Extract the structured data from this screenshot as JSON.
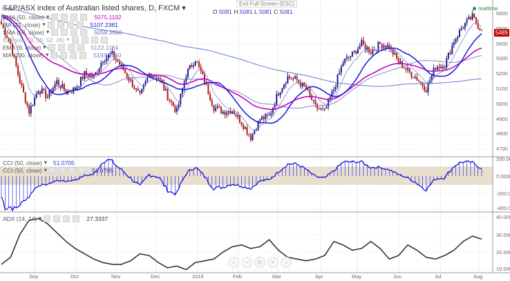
{
  "header": {
    "title": "S&P/ASX index of Australian listed shares, D, FXCM",
    "ohlc": {
      "o": "5081",
      "h": "5081",
      "l": "5081",
      "c": "5081"
    },
    "tooltip": "Exit Full Screen (ESC)",
    "realtime": "realtime",
    "last_price": "5489"
  },
  "indicators": [
    {
      "label": "EMA (50, close)",
      "value": "5075.1102",
      "color": "#c000c0"
    },
    {
      "label": "MA (21, close)",
      "value": "5107.2381",
      "color": "#1414dd"
    },
    {
      "label": "SMA (50, close)",
      "value": "5058.3650",
      "color": "#6a6ac0"
    },
    {
      "label": "Ichimoku (9, 26, 52, 26)",
      "value": "",
      "color": "#cccccc"
    },
    {
      "label": "EMA (9, close)",
      "value": "5122.1184",
      "color": "#8080d0"
    },
    {
      "label": "MA (200, close)",
      "value": "5193.7550",
      "color": "#5b7bc8"
    }
  ],
  "cci": {
    "label": "CCI (50, close)",
    "value": "51.0705",
    "label2": "CCI (50, close)",
    "value2": "51.0705",
    "axis": [
      "200.0000",
      "0.0000",
      "-200.0000",
      "-400.0000"
    ]
  },
  "adx": {
    "label": "ADX (14, 14)",
    "value": "27.3337",
    "axis": [
      "40.0000",
      "30.0000",
      "20.0000",
      "10.0000"
    ],
    "weekly": [
      13,
      17,
      30,
      38,
      39,
      36,
      31,
      26,
      22,
      19,
      16,
      14,
      13,
      13,
      15,
      19,
      18,
      14,
      11,
      12,
      10,
      14,
      15,
      16,
      20,
      23,
      24,
      22,
      23,
      27,
      21,
      17,
      16,
      15,
      16,
      18,
      26,
      24,
      21,
      22,
      26,
      22,
      16,
      18,
      24,
      21,
      17,
      16,
      18,
      21,
      26,
      29,
      27.3
    ]
  },
  "price_axis": [
    "5600",
    "5500",
    "5400",
    "5300",
    "5200",
    "5100",
    "5000",
    "4900",
    "4800",
    "4700"
  ],
  "months": [
    "Sep",
    "Oct",
    "Nov",
    "Dec",
    "2016",
    "Feb",
    "Mar",
    "Apr",
    "May",
    "Jun",
    "Jul",
    "Aug"
  ],
  "price_weekly_close": [
    5530,
    5400,
    5150,
    4950,
    5100,
    5050,
    5150,
    5080,
    5100,
    5200,
    5180,
    5300,
    5330,
    5250,
    5150,
    5050,
    5200,
    5180,
    5050,
    4950,
    5200,
    5300,
    5150,
    4980,
    4950,
    4960,
    4880,
    4780,
    4900,
    4920,
    5080,
    5180,
    5160,
    5100,
    4980,
    4950,
    5100,
    5280,
    5330,
    5400,
    5350,
    5400,
    5380,
    5280,
    5220,
    5170,
    5100,
    5250,
    5260,
    5420,
    5520,
    5580,
    5489
  ],
  "colors": {
    "up": "#1c1c8a",
    "down": "#b01818",
    "cci": "#1010e0",
    "adx": "#333333",
    "band": "#eadfce",
    "grid": "#e6f0dc"
  },
  "nav": [
    "‹",
    "−",
    "↻",
    "+",
    "›"
  ]
}
